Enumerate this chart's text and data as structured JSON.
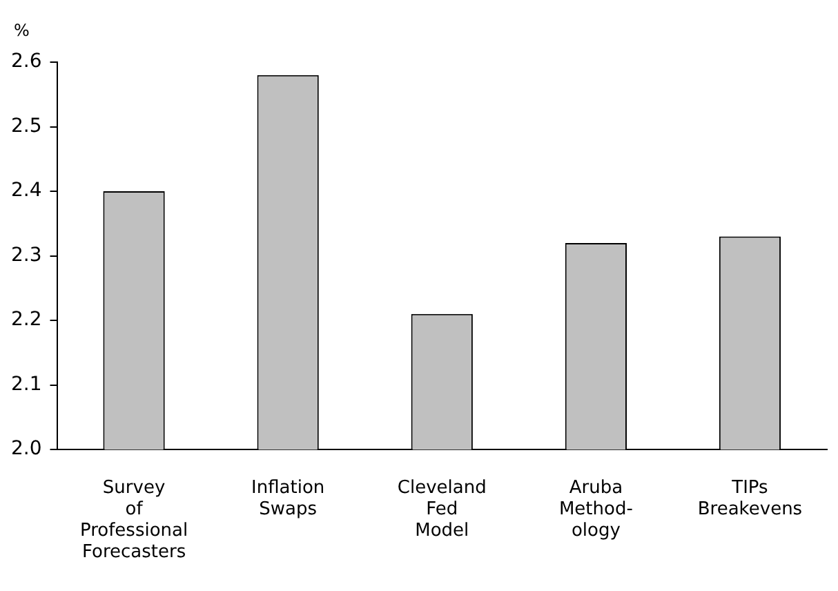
{
  "chart_data": {
    "type": "bar",
    "ylabel": "%",
    "categories": [
      "Survey\nof\nProfessional\nForecasters",
      "Inflation\nSwaps",
      "Cleveland\nFed\nModel",
      "Aruba\nMethod-\nology",
      "TIPs\nBreakevens"
    ],
    "values": [
      2.4,
      2.58,
      2.21,
      2.32,
      2.33
    ],
    "color": "#c0c0c0",
    "ylim": [
      2.0,
      2.6
    ],
    "yticks": [
      {
        "value": 2.0,
        "label": "2.0"
      },
      2.1,
      2.2,
      2.3,
      2.4,
      2.5,
      2.6
    ],
    "grid": false,
    "legend": false
  }
}
